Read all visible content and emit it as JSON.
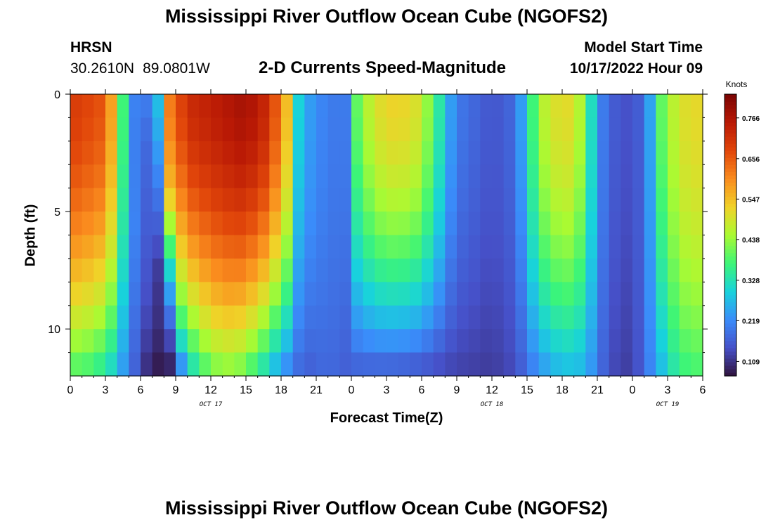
{
  "header": {
    "title": "Mississippi River Outflow Ocean Cube (NGOFS2)",
    "station": "HRSN",
    "lat": "30.2610N",
    "lon": "89.0801W",
    "variable": "2-D Currents Speed-Magnitude",
    "model_start_label": "Model Start Time",
    "model_start_value": "10/17/2022 Hour 09"
  },
  "footer": {
    "title": "Mississippi River Outflow Ocean Cube (NGOFS2)"
  },
  "chart_data": {
    "type": "heatmap",
    "title": "2-D Currents Speed-Magnitude",
    "xlabel": "Forecast Time(Z)",
    "ylabel": "Depth (ft)",
    "x_unit": "hours",
    "x_range": [
      0,
      54
    ],
    "x_tick_values": [
      0,
      3,
      6,
      9,
      12,
      15,
      18,
      21,
      24,
      27,
      30,
      33,
      36,
      39,
      42,
      45,
      48,
      51,
      54
    ],
    "x_tick_labels": [
      "0",
      "3",
      "6",
      "9",
      "12",
      "15",
      "18",
      "21",
      "0",
      "3",
      "6",
      "9",
      "12",
      "15",
      "18",
      "21",
      "0",
      "3",
      "6"
    ],
    "date_labels": [
      {
        "label": "OCT 17",
        "at_hour": 12
      },
      {
        "label": "OCT 18",
        "at_hour": 36
      },
      {
        "label": "OCT 19",
        "at_hour": 51
      }
    ],
    "ylim": [
      0,
      12
    ],
    "y_ticks": [
      0,
      5,
      10
    ],
    "colorbar": {
      "unit": "Knots",
      "min": 0.07,
      "max": 0.83,
      "ticks": [
        0.109,
        0.219,
        0.328,
        0.438,
        0.547,
        0.656,
        0.766
      ],
      "tick_labels": [
        "0.109",
        "0.219",
        "0.328",
        "0.438",
        "0.547",
        "0.656",
        "0.766"
      ]
    },
    "time_step_hours": 1,
    "depth_levels": [
      0.5,
      1.5,
      2.5,
      3.5,
      4.5,
      5.5,
      6.5,
      7.5,
      8.5,
      9.5,
      10.5,
      11.5
    ],
    "depth_edges": [
      0,
      1,
      2,
      3,
      4,
      5,
      6,
      7,
      8,
      9,
      10,
      11,
      12
    ],
    "speed_field": {
      "description_free_params": true,
      "surface_profile": [
        [
          0,
          0.7
        ],
        [
          3,
          0.66
        ],
        [
          4,
          0.5
        ],
        [
          5,
          0.25
        ],
        [
          6,
          0.2
        ],
        [
          7.5,
          0.3
        ],
        [
          8.5,
          0.62
        ],
        [
          10,
          0.72
        ],
        [
          15,
          0.78
        ],
        [
          17,
          0.72
        ],
        [
          18.5,
          0.55
        ],
        [
          19.5,
          0.3
        ],
        [
          20.5,
          0.24
        ],
        [
          22,
          0.2
        ],
        [
          23.5,
          0.2
        ],
        [
          24.5,
          0.4
        ],
        [
          26,
          0.5
        ],
        [
          28,
          0.53
        ],
        [
          29.5,
          0.5
        ],
        [
          31,
          0.4
        ],
        [
          32,
          0.28
        ],
        [
          33,
          0.2
        ],
        [
          36,
          0.15
        ],
        [
          38,
          0.18
        ],
        [
          39,
          0.3
        ],
        [
          40,
          0.45
        ],
        [
          42,
          0.52
        ],
        [
          43,
          0.5
        ],
        [
          44,
          0.42
        ],
        [
          45,
          0.22
        ],
        [
          47,
          0.14
        ],
        [
          49,
          0.17
        ],
        [
          50.5,
          0.4
        ],
        [
          52,
          0.5
        ],
        [
          54,
          0.52
        ]
      ],
      "bottom_profile": [
        [
          0,
          0.38
        ],
        [
          2,
          0.36
        ],
        [
          3.5,
          0.3
        ],
        [
          5,
          0.2
        ],
        [
          6.5,
          0.1
        ],
        [
          8,
          0.07
        ],
        [
          10,
          0.28
        ],
        [
          12,
          0.4
        ],
        [
          14,
          0.42
        ],
        [
          16,
          0.34
        ],
        [
          18,
          0.22
        ],
        [
          20,
          0.16
        ],
        [
          22,
          0.18
        ],
        [
          24,
          0.16
        ],
        [
          28,
          0.15
        ],
        [
          32,
          0.13
        ],
        [
          36,
          0.12
        ],
        [
          38,
          0.14
        ],
        [
          40,
          0.22
        ],
        [
          42,
          0.27
        ],
        [
          44,
          0.26
        ],
        [
          46,
          0.14
        ],
        [
          48,
          0.12
        ],
        [
          50,
          0.24
        ],
        [
          52,
          0.36
        ],
        [
          54,
          0.38
        ]
      ],
      "depth_blend_exponent": 1.8,
      "slow_wedge": {
        "hour_at_surface": 6.2,
        "hour_at_bottom": 8.2,
        "surface_speed": 0.2,
        "bottom_speed": 0.07
      }
    }
  }
}
